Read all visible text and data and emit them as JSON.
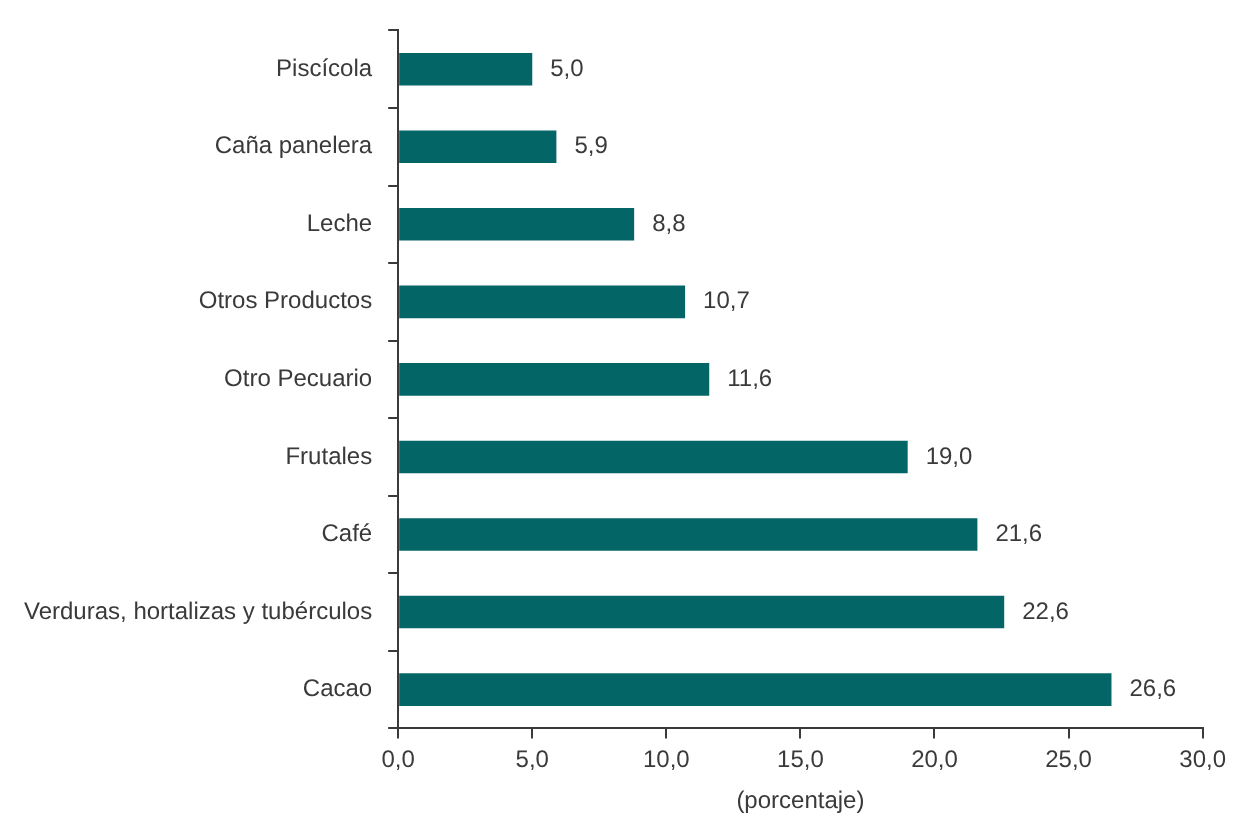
{
  "chart_data": {
    "type": "bar",
    "orientation": "horizontal",
    "categories": [
      "Piscícola",
      "Caña panelera",
      "Leche",
      "Otros Productos",
      "Otro Pecuario",
      "Frutales",
      "Café",
      "Verduras, hortalizas y tubérculos",
      "Cacao"
    ],
    "values": [
      5.0,
      5.9,
      8.8,
      10.7,
      11.6,
      19.0,
      21.6,
      22.6,
      26.6
    ],
    "value_labels": [
      "5,0",
      "5,9",
      "8,8",
      "10,7",
      "11,6",
      "19,0",
      "21,6",
      "22,6",
      "26,6"
    ],
    "color": "#046567",
    "xlabel": "(porcentaje)",
    "xlim": [
      0,
      30
    ],
    "xticks": [
      {
        "value": 0,
        "label": "0,0"
      },
      {
        "value": 5,
        "label": "5,0"
      },
      {
        "value": 10,
        "label": "10,0"
      },
      {
        "value": 15,
        "label": "15,0"
      },
      {
        "value": 20,
        "label": "20,0"
      },
      {
        "value": 25,
        "label": "25,0"
      },
      {
        "value": 30,
        "label": "30,0"
      }
    ],
    "grid": false,
    "legend": false
  }
}
